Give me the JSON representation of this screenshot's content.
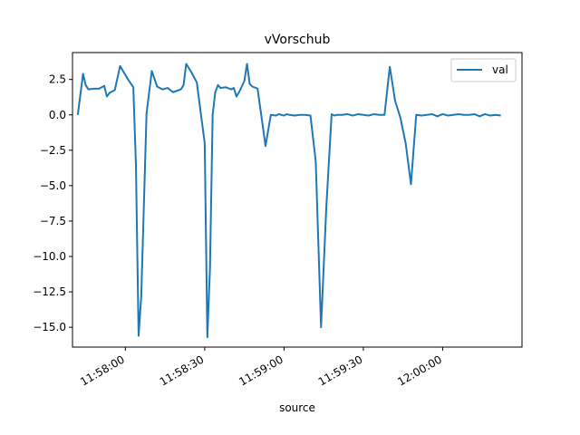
{
  "chart_data": {
    "type": "line",
    "title": "vVorschub",
    "xlabel": "source",
    "ylabel": "",
    "x_tick_labels": [
      "11:58:00",
      "11:58:30",
      "11:59:00",
      "11:59:30",
      "12:00:00"
    ],
    "y_ticks": [
      2.5,
      0.0,
      -2.5,
      -5.0,
      -7.5,
      -10.0,
      -12.5,
      -15.0
    ],
    "y_tick_labels": [
      "2.5",
      "0.0",
      "−2.5",
      "−5.0",
      "−7.5",
      "−10.0",
      "−12.5",
      "−15.0"
    ],
    "ylim": [
      -16.4,
      4.4
    ],
    "xlim": [
      "11:57:40",
      "12:00:30"
    ],
    "legend": {
      "placement": "upper right",
      "entries": [
        "val"
      ]
    },
    "grid": false,
    "colors": {
      "line": "#1f77b4"
    },
    "series": [
      {
        "name": "val",
        "x": [
          "11:57:42",
          "11:57:44",
          "11:57:45",
          "11:57:46",
          "11:57:48",
          "11:57:50",
          "11:57:52",
          "11:57:53",
          "11:57:54",
          "11:57:56",
          "11:57:58",
          "11:58:01",
          "11:58:03",
          "11:58:04",
          "11:58:05",
          "11:58:06",
          "11:58:08",
          "11:58:10",
          "11:58:12",
          "11:58:14",
          "11:58:15",
          "11:58:16",
          "11:58:18",
          "11:58:21",
          "11:58:22",
          "11:58:23",
          "11:58:25",
          "11:58:27",
          "11:58:30",
          "11:58:31",
          "11:58:32",
          "11:58:33",
          "11:58:34",
          "11:58:35",
          "11:58:36",
          "11:58:38",
          "11:58:40",
          "11:58:41",
          "11:58:42",
          "11:58:43",
          "11:58:45",
          "11:58:46",
          "11:58:47",
          "11:58:48",
          "11:58:50",
          "11:58:53",
          "11:58:55",
          "11:58:57",
          "11:58:58",
          "11:58:59",
          "11:59:00",
          "11:59:01",
          "11:59:02",
          "11:59:04",
          "11:59:06",
          "11:59:08",
          "11:59:10",
          "11:59:12",
          "11:59:14",
          "11:59:16",
          "11:59:18",
          "11:59:19",
          "11:59:20",
          "11:59:22",
          "11:59:24",
          "11:59:26",
          "11:59:28",
          "11:59:30",
          "11:59:32",
          "11:59:34",
          "11:59:36",
          "11:59:38",
          "11:59:40",
          "11:59:42",
          "11:59:44",
          "11:59:46",
          "11:59:48",
          "11:59:50",
          "11:59:52",
          "11:59:54",
          "11:59:56",
          "11:59:58",
          "12:00:00",
          "12:00:02",
          "12:00:04",
          "12:00:06",
          "12:00:08",
          "12:00:10",
          "12:00:12",
          "12:00:14",
          "12:00:16",
          "12:00:18",
          "12:00:20",
          "12:00:22"
        ],
        "values": [
          0.0,
          2.9,
          2.1,
          1.8,
          1.85,
          1.85,
          2.05,
          1.3,
          1.55,
          1.75,
          3.45,
          2.5,
          1.95,
          -3.6,
          -15.6,
          -12.8,
          0.1,
          3.1,
          2.0,
          1.8,
          1.85,
          1.9,
          1.6,
          1.8,
          2.1,
          3.6,
          3.0,
          2.3,
          -2.0,
          -15.7,
          -10.8,
          0.0,
          1.6,
          2.1,
          1.9,
          1.95,
          1.8,
          1.9,
          1.3,
          1.6,
          2.4,
          3.6,
          2.2,
          2.0,
          1.85,
          -2.2,
          0.0,
          -0.05,
          0.05,
          0.0,
          -0.05,
          0.05,
          0.0,
          -0.05,
          0.0,
          0.0,
          -0.05,
          -3.3,
          -15.0,
          -6.5,
          0.05,
          -0.05,
          0.0,
          0.0,
          0.05,
          -0.05,
          0.05,
          0.0,
          -0.05,
          0.05,
          0.0,
          0.0,
          3.4,
          1.0,
          -0.2,
          -2.0,
          -4.9,
          0.0,
          -0.05,
          0.0,
          0.05,
          -0.1,
          0.05,
          -0.05,
          0.0,
          0.05,
          0.0,
          0.0,
          0.05,
          -0.1,
          0.05,
          -0.05,
          0.0,
          -0.05
        ]
      }
    ]
  }
}
